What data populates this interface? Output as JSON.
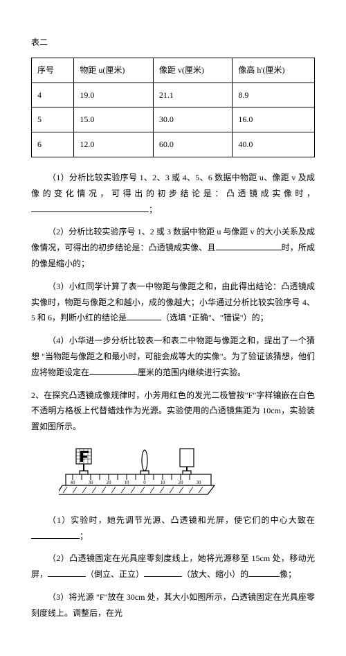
{
  "table": {
    "caption": "表二",
    "headers": [
      "序号",
      "物距 u(厘米)",
      "像距 v(厘米)",
      "像高 h'(厘米)"
    ],
    "rows": [
      [
        "4",
        "19.0",
        "21.1",
        "8.9"
      ],
      [
        "5",
        "15.0",
        "30.0",
        "16.0"
      ],
      [
        "6",
        "12.0",
        "60.0",
        "40.0"
      ]
    ],
    "col_widths": [
      "15%",
      "28%",
      "28%",
      "29%"
    ]
  },
  "q1": {
    "p1_a": "（1）分析比较实验序号 1、2、3 或 4、5、6 数据中物距 u、像距 v 及成像的变化情况，可得出的初步结论是：凸透镜成实像时，",
    "p1_b": "；",
    "blank1_w": 170,
    "p2_a": "（2）分析比较实验序号 1、2 或 3 数据中物距 u 与像距 v 的大小关系及成像情况，可得出的初步结论是：凸透镜成实像、且",
    "p2_b": "时，所成的像是缩小的；",
    "blank2_w": 95,
    "p3_a": "（3）小红同学计算了表一中物距与像距之和，由此得出结论：凸透镜成实像时，物距与像距之和越小，成的像越大；小华通过分析比较实验序号 4、5 和 6，判断小红的结论是",
    "p3_b": "（选填 \"正确\"、\"错误\"）的；",
    "blank3_w": 50,
    "p4_a": "（4）小华进一步分析比较表一和表二中物距与像距之和，提出了一个猜想 \"当物距与像距之和最小时，可能会成等大的实像\"。为了验证该猜想，他们应将物距设定在",
    "p4_b": "厘米的范围内继续进行实验。",
    "blank4_w": 70
  },
  "q2": {
    "intro": "2、在探究凸透镜成像规律时，小芳用红色的发光二极管按\"F\"字样镶嵌在白色不透明方格板上代替蜡烛作为光源。实验使用的凸透镜焦距为 10cm，实验装置如图所示。",
    "p1_a": "（1）实验时，她先调节光源、凸透镜和光屏，使它们的中心大致在",
    "p1_b": "；",
    "blank1_w": 70,
    "p2_a": "（2）凸透镜固定在光具座零刻度线上，她将光源移至 15cm 处，移动光屏，",
    "p2_b": "（倒立、正立）",
    "p2_c": "（放大、缩小）的",
    "p2_d": "像；",
    "blank2a_w": 55,
    "blank2b_w": 55,
    "blank2c_w": 45,
    "p3": "（3）将光源 \"F\"放在 30cm 处，其大小如图所示，凸透镜固定在光具座零刻度线上。调整后，在光"
  },
  "diagram": {
    "ruler_ticks": [
      "40",
      "30",
      "",
      "20",
      "",
      "10",
      "",
      "0",
      "",
      "10",
      "",
      "20",
      "",
      "30"
    ],
    "stroke": "#000",
    "fill_light": "#fff",
    "hatch": "#333"
  }
}
